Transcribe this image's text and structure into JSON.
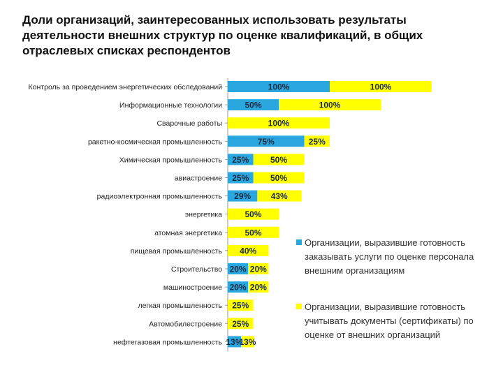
{
  "title": "Доли организаций, заинтересованных использовать результаты деятельности внешних структур по оценке квалификаций, в общих отраслевых списках респондентов",
  "chart_data": {
    "type": "bar",
    "orientation": "horizontal",
    "stacked": true,
    "title": "Доли организаций, заинтересованных использовать результаты деятельности внешних структур по оценке квалификаций, в общих отраслевых списках респондентов",
    "categories": [
      "Контроль за проведением энергетических обследований",
      "Информационные технологии",
      "Сварочные работы",
      "ракетно-космическая промышленность",
      "Химическая промышленность",
      "авиастроение",
      "радиоэлектронная промышленность",
      "энергетика",
      "атомная энергетика",
      "пищевая промышленность",
      "Строительство",
      "машиностроение",
      "легкая промышленность",
      "Автомобилестроение",
      "нефтегазовая промышленность"
    ],
    "series": [
      {
        "name": "Организации, выразившие готовность заказывать услуги по оценке персонала внешним организациям",
        "color": "#2aa7df",
        "values": [
          100,
          50,
          0,
          75,
          25,
          25,
          29,
          0,
          0,
          0,
          20,
          20,
          0,
          0,
          13
        ],
        "labels": [
          "100%",
          "50%",
          "",
          "75%",
          "25%",
          "25%",
          "29%",
          "",
          "",
          "",
          "20%",
          "20%",
          "",
          "",
          "13%"
        ]
      },
      {
        "name": "Организации, выразившие готовность учитывать документы (сертификаты) по оценке от внешних организаций",
        "color": "#ffff00",
        "values": [
          100,
          100,
          100,
          25,
          50,
          50,
          43,
          50,
          50,
          40,
          20,
          20,
          25,
          25,
          13
        ],
        "labels": [
          "100%",
          "100%",
          "100%",
          "25%",
          "50%",
          "50%",
          "43%",
          "50%",
          "50%",
          "40%",
          "20%",
          "20%",
          "25%",
          "25%",
          "13%"
        ]
      }
    ],
    "xlim": [
      0,
      200
    ],
    "legend_position": "right",
    "grid": false,
    "xlabel": "",
    "ylabel": ""
  }
}
